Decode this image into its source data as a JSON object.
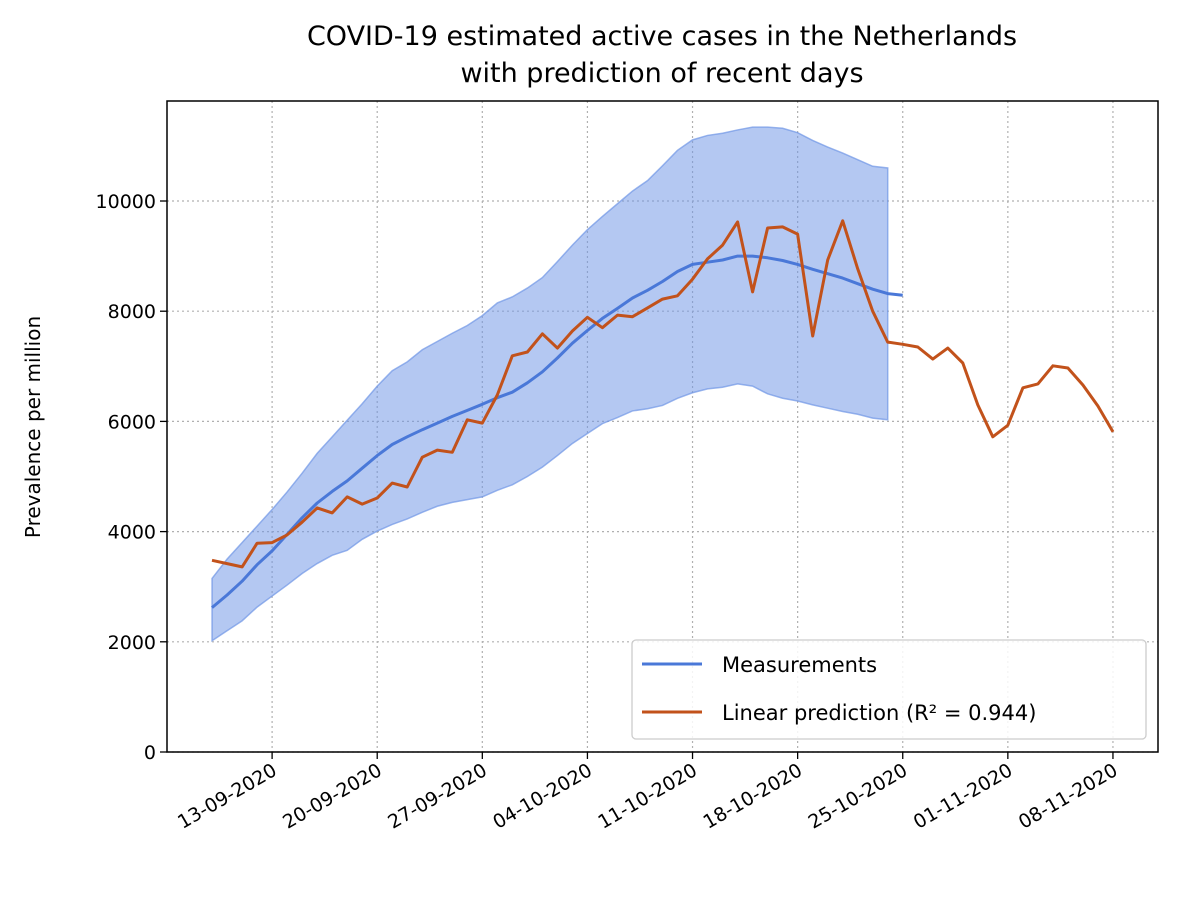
{
  "chart_data": {
    "type": "line",
    "title": "COVID-19 estimated active cases in the Netherlands",
    "subtitle": "with prediction of recent days",
    "y_label": "Prevalence per million",
    "x": [
      "09-09-2020",
      "10-09-2020",
      "11-09-2020",
      "12-09-2020",
      "13-09-2020",
      "14-09-2020",
      "15-09-2020",
      "16-09-2020",
      "17-09-2020",
      "18-09-2020",
      "19-09-2020",
      "20-09-2020",
      "21-09-2020",
      "22-09-2020",
      "23-09-2020",
      "24-09-2020",
      "25-09-2020",
      "26-09-2020",
      "27-09-2020",
      "28-09-2020",
      "29-09-2020",
      "30-09-2020",
      "01-10-2020",
      "02-10-2020",
      "03-10-2020",
      "04-10-2020",
      "05-10-2020",
      "06-10-2020",
      "07-10-2020",
      "08-10-2020",
      "09-10-2020",
      "10-10-2020",
      "11-10-2020",
      "12-10-2020",
      "13-10-2020",
      "14-10-2020",
      "15-10-2020",
      "16-10-2020",
      "17-10-2020",
      "18-10-2020",
      "19-10-2020",
      "20-10-2020",
      "21-10-2020",
      "22-10-2020",
      "23-10-2020",
      "24-10-2020",
      "25-10-2020",
      "26-10-2020",
      "27-10-2020",
      "28-10-2020",
      "29-10-2020",
      "30-10-2020",
      "31-10-2020",
      "01-11-2020",
      "02-11-2020",
      "03-11-2020",
      "04-11-2020",
      "05-11-2020",
      "06-11-2020",
      "07-11-2020",
      "08-11-2020"
    ],
    "series": [
      {
        "name": "Measurements",
        "color": "#4a78d8",
        "band_color": "#6f95e6",
        "values": [
          2620,
          2850,
          3100,
          3400,
          3650,
          3950,
          4250,
          4520,
          4730,
          4920,
          5150,
          5380,
          5580,
          5720,
          5850,
          5970,
          6090,
          6200,
          6310,
          6430,
          6530,
          6700,
          6900,
          7150,
          7420,
          7650,
          7870,
          8050,
          8240,
          8380,
          8540,
          8720,
          8850,
          8890,
          8930,
          9000,
          9000,
          8970,
          8920,
          8850,
          8760,
          8680,
          8600,
          8500,
          8400,
          8320,
          8290,
          null,
          null,
          null,
          null,
          null,
          null,
          null,
          null,
          null,
          null,
          null,
          null,
          null,
          null
        ],
        "lower": [
          2020,
          2200,
          2380,
          2630,
          2830,
          3030,
          3240,
          3420,
          3570,
          3660,
          3860,
          4010,
          4130,
          4230,
          4350,
          4460,
          4530,
          4580,
          4630,
          4750,
          4850,
          5000,
          5170,
          5380,
          5600,
          5780,
          5960,
          6070,
          6190,
          6230,
          6290,
          6420,
          6520,
          6590,
          6620,
          6680,
          6640,
          6500,
          6420,
          6370,
          6300,
          6240,
          6180,
          6130,
          6060,
          6030,
          null,
          null,
          null,
          null,
          null,
          null,
          null,
          null,
          null,
          null,
          null,
          null,
          null,
          null,
          null
        ],
        "upper": [
          3150,
          3500,
          3800,
          4100,
          4400,
          4720,
          5060,
          5420,
          5720,
          6020,
          6320,
          6640,
          6920,
          7080,
          7300,
          7450,
          7600,
          7740,
          7920,
          8150,
          8260,
          8420,
          8610,
          8900,
          9200,
          9480,
          9720,
          9950,
          10180,
          10370,
          10640,
          10920,
          11110,
          11190,
          11230,
          11290,
          11340,
          11340,
          11320,
          11240,
          11100,
          10980,
          10870,
          10750,
          10630,
          10600,
          null,
          null,
          null,
          null,
          null,
          null,
          null,
          null,
          null,
          null,
          null,
          null,
          null,
          null,
          null
        ]
      },
      {
        "name": "Linear prediction (R² = 0.944)",
        "color": "#c2521b",
        "values": [
          3480,
          3420,
          3360,
          3790,
          3800,
          3940,
          4170,
          4430,
          4340,
          4630,
          4500,
          4610,
          4880,
          4810,
          5350,
          5480,
          5440,
          6030,
          5970,
          6480,
          7190,
          7260,
          7590,
          7330,
          7640,
          7890,
          7700,
          7930,
          7900,
          8060,
          8220,
          8280,
          8580,
          8950,
          9200,
          9620,
          8350,
          9510,
          9530,
          9400,
          7550,
          8930,
          9640,
          8770,
          8000,
          7440,
          7400,
          7350,
          7130,
          7330,
          7060,
          6300,
          5720,
          5930,
          6610,
          6680,
          7010,
          6970,
          6660,
          6280,
          5810
        ]
      }
    ],
    "xlim": [
      "06-09-2020",
      "11-11-2020"
    ],
    "xticks": [
      "13-09-2020",
      "20-09-2020",
      "27-09-2020",
      "04-10-2020",
      "11-10-2020",
      "18-10-2020",
      "25-10-2020",
      "01-11-2020",
      "08-11-2020"
    ],
    "ylim": [
      0,
      11815
    ],
    "yticks": [
      0,
      2000,
      4000,
      6000,
      8000,
      10000
    ],
    "grid": true,
    "legend": "lower right"
  }
}
